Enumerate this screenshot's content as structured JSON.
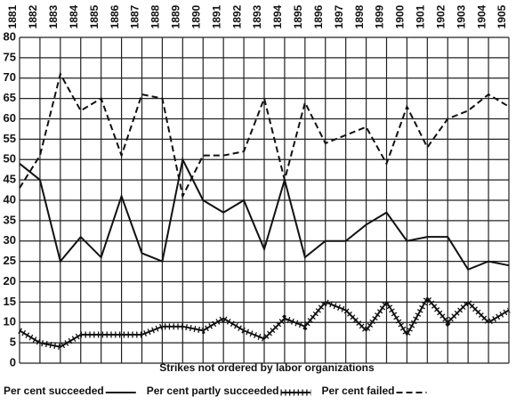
{
  "chart_data": {
    "type": "line",
    "title": "Strikes not ordered by labor organizations",
    "categories": [
      "1881",
      "1882",
      "1883",
      "1884",
      "1885",
      "1886",
      "1887",
      "1888",
      "1889",
      "1890",
      "1891",
      "1892",
      "1893",
      "1894",
      "1895",
      "1896",
      "1897",
      "1898",
      "1899",
      "1900",
      "1901",
      "1902",
      "1903",
      "1904",
      "1905"
    ],
    "series": [
      {
        "name": "Per cent succeeded",
        "color": "#111111",
        "style": "solid",
        "values": [
          49,
          45,
          25,
          31,
          26,
          41,
          27,
          25,
          50,
          40,
          37,
          40,
          28,
          45,
          26,
          30,
          30,
          34,
          37,
          30,
          31,
          31,
          23,
          25,
          24
        ]
      },
      {
        "name": "Per cent partly succeeded",
        "color": "#111111",
        "style": "cross",
        "values": [
          8,
          5,
          4,
          7,
          7,
          7,
          7,
          9,
          9,
          8,
          11,
          8,
          6,
          11,
          9,
          15,
          13,
          8,
          15,
          7,
          16,
          10,
          15,
          10,
          13
        ]
      },
      {
        "name": "Per cent failed",
        "color": "#111111",
        "style": "dashed",
        "values": [
          43,
          51,
          71,
          62,
          65,
          51,
          66,
          65,
          41,
          51,
          51,
          52,
          65,
          45,
          64,
          54,
          56,
          58,
          49,
          63,
          53,
          60,
          62,
          66,
          63
        ]
      }
    ],
    "ylim": [
      0,
      80
    ],
    "yticks": [
      0,
      5,
      10,
      15,
      20,
      25,
      30,
      35,
      40,
      45,
      50,
      55,
      60,
      65,
      70,
      75,
      80
    ],
    "grid": true
  }
}
